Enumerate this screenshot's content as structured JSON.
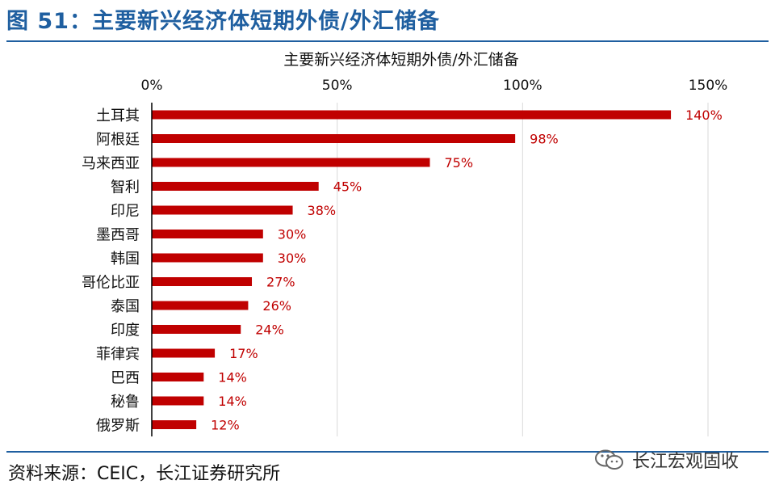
{
  "figure_title": "图 51：主要新兴经济体短期外债/外汇储备",
  "source": "资料来源：CEIC，长江证券研究所",
  "watermark": {
    "text": "长江宏观固收",
    "icon": "wechat-icon"
  },
  "colors": {
    "bar": "#c00000",
    "label": "#c00000",
    "title": "#1f5fa0",
    "grid": "#d9d9d9"
  },
  "chart_data": {
    "type": "bar",
    "orientation": "horizontal",
    "title": "主要新兴经济体短期外债/外汇储备",
    "categories": [
      "土耳其",
      "阿根廷",
      "马来西亚",
      "智利",
      "印尼",
      "墨西哥",
      "韩国",
      "哥伦比亚",
      "泰国",
      "印度",
      "菲律宾",
      "巴西",
      "秘鲁",
      "俄罗斯"
    ],
    "values": [
      140,
      98,
      75,
      45,
      38,
      30,
      30,
      27,
      26,
      24,
      17,
      14,
      14,
      12
    ],
    "value_labels": [
      "140%",
      "98%",
      "75%",
      "45%",
      "38%",
      "30%",
      "30%",
      "27%",
      "26%",
      "24%",
      "17%",
      "14%",
      "14%",
      "12%"
    ],
    "xlim": [
      0,
      150
    ],
    "xticks": [
      0,
      50,
      100,
      150
    ],
    "xtick_labels": [
      "0%",
      "50%",
      "100%",
      "150%"
    ],
    "axis_position": "top",
    "grid": "vertical",
    "legend": "none"
  }
}
